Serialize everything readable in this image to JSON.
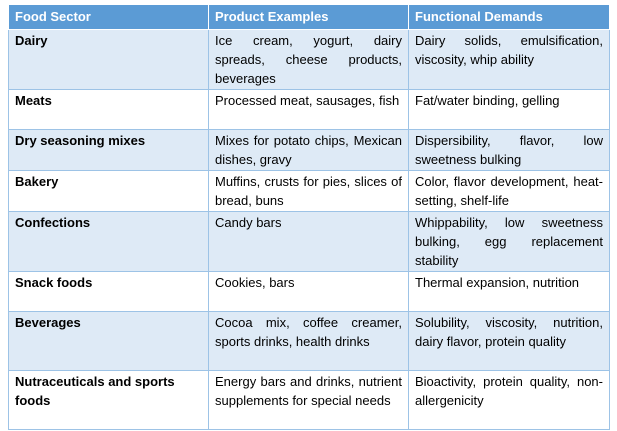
{
  "table": {
    "headers": [
      "Food Sector",
      "Product Examples",
      "Functional Demands"
    ],
    "rows": [
      {
        "sector": "Dairy",
        "products": "Ice cream, yogurt, dairy spreads, cheese products, beverages",
        "demands": "Dairy solids, emulsification, viscosity, whip ability"
      },
      {
        "sector": "Meats",
        "products": "Processed meat, sausages, fish",
        "demands": "Fat/water binding, gelling"
      },
      {
        "sector": "Dry seasoning mixes",
        "products": "Mixes for potato chips, Mexican dishes, gravy",
        "demands": "Dispersibility, flavor, low sweetness bulking"
      },
      {
        "sector": "Bakery",
        "products": "Muffins, crusts for pies, slices of bread, buns",
        "demands": "Color, flavor development, heat-setting, shelf-life"
      },
      {
        "sector": "Confections",
        "products": "Candy bars",
        "demands": "Whippability, low sweetness bulking, egg replacement stability"
      },
      {
        "sector": "Snack foods",
        "products": "Cookies, bars",
        "demands": "Thermal expansion, nutrition"
      },
      {
        "sector": "Beverages",
        "products": "Cocoa mix, coffee creamer, sports drinks, health drinks",
        "demands": "Solubility, viscosity, nutrition, dairy flavor, protein quality"
      },
      {
        "sector": "Nutraceuticals and sports foods",
        "products": "Energy bars and drinks, nutrient supplements for special needs",
        "demands": "Bioactivity, protein quality, non-allergenicity"
      }
    ]
  }
}
